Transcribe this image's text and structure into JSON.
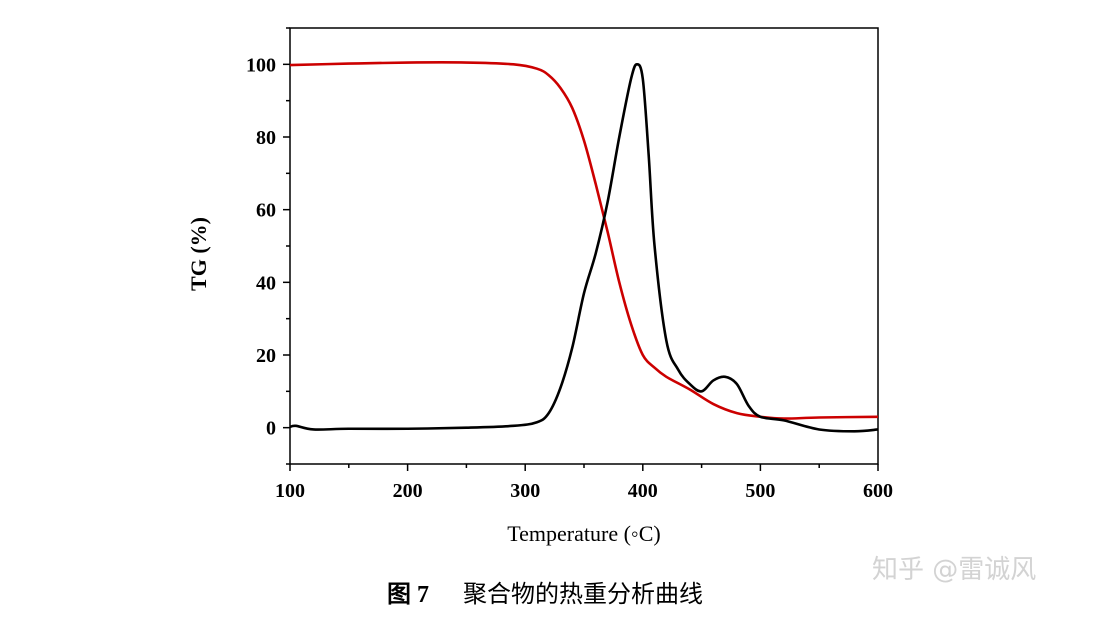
{
  "chart_data": {
    "type": "line",
    "xlabel": "Temperature (◦C)",
    "ylabel": "TG (%)",
    "xlim": [
      100,
      600
    ],
    "ylim": [
      -10,
      110
    ],
    "xticks": [
      "100",
      "200",
      "300",
      "400",
      "500",
      "600"
    ],
    "yticks": [
      "0",
      "20",
      "40",
      "60",
      "80",
      "100"
    ],
    "grid": false,
    "series": [
      {
        "color": "#cc0000",
        "x": [
          100,
          150,
          200,
          250,
          290,
          310,
          320,
          330,
          340,
          350,
          360,
          370,
          380,
          390,
          400,
          410,
          420,
          440,
          460,
          480,
          500,
          520,
          550,
          600
        ],
        "y": [
          99.8,
          100.2,
          100.5,
          100.5,
          100.0,
          98.8,
          97.0,
          93.5,
          88.0,
          79.0,
          67.0,
          54.0,
          40.0,
          28.5,
          20.0,
          16.5,
          14.0,
          10.5,
          6.5,
          4.0,
          3.0,
          2.5,
          2.8,
          3.0
        ]
      },
      {
        "color": "#000000",
        "x": [
          100,
          105,
          120,
          150,
          200,
          250,
          290,
          310,
          320,
          330,
          340,
          350,
          360,
          370,
          380,
          390,
          395,
          400,
          405,
          410,
          420,
          430,
          440,
          450,
          460,
          470,
          480,
          490,
          500,
          520,
          550,
          580,
          600
        ],
        "y": [
          0.2,
          0.5,
          -0.5,
          -0.3,
          -0.3,
          0.0,
          0.5,
          1.5,
          4.0,
          11.0,
          22.0,
          37.0,
          48.0,
          62.0,
          80.0,
          96.0,
          100.0,
          96.0,
          75.0,
          50.0,
          24.0,
          16.0,
          12.0,
          10.0,
          13.0,
          14.0,
          12.0,
          6.0,
          3.0,
          2.0,
          -0.5,
          -1.0,
          -0.5
        ]
      }
    ]
  },
  "caption": {
    "label": "图 7",
    "text": "聚合物的热重分析曲线"
  },
  "watermark": "知乎 @雷诚风"
}
